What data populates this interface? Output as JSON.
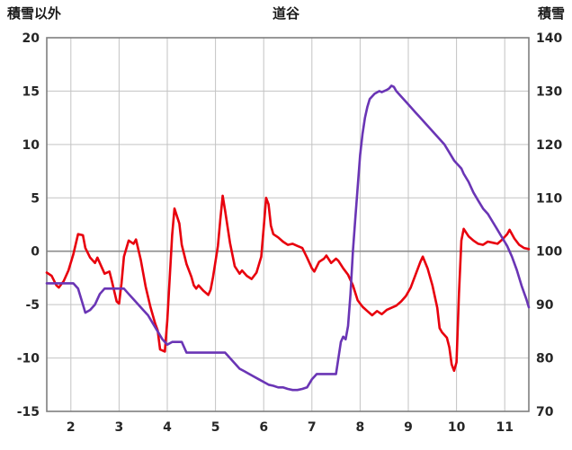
{
  "header": {
    "left_axis_title": "積雪以外",
    "chart_title": "道谷",
    "right_axis_title": "積雪"
  },
  "chart_data": {
    "type": "line",
    "title": "道谷",
    "left_axis": {
      "title": "積雪以外",
      "min": -15,
      "max": 20,
      "ticks": [
        20,
        15,
        10,
        5,
        0,
        -5,
        -10,
        -15
      ]
    },
    "right_axis": {
      "title": "積雪",
      "min": 70,
      "max": 140,
      "ticks": [
        140,
        130,
        120,
        110,
        100,
        90,
        80,
        70
      ]
    },
    "x_axis": {
      "min": 1.5,
      "max": 11.5,
      "ticks": [
        2,
        3,
        4,
        5,
        6,
        7,
        8,
        9,
        10,
        11
      ]
    },
    "grid": true,
    "legend": "none",
    "colors": {
      "grid": "#c3c3c3",
      "zero_line": "#8c8c8c",
      "border": "#7f7f7f",
      "series_other": "#e8000d",
      "series_snow": "#6a35b5"
    },
    "series": [
      {
        "name": "積雪以外",
        "axis": "left",
        "color": "#e8000d",
        "points": [
          [
            1.5,
            -2.0
          ],
          [
            1.6,
            -2.3
          ],
          [
            1.7,
            -3.2
          ],
          [
            1.75,
            -3.4
          ],
          [
            1.85,
            -2.8
          ],
          [
            1.95,
            -1.8
          ],
          [
            2.05,
            -0.3
          ],
          [
            2.15,
            1.6
          ],
          [
            2.25,
            1.5
          ],
          [
            2.3,
            0.3
          ],
          [
            2.4,
            -0.6
          ],
          [
            2.5,
            -1.1
          ],
          [
            2.55,
            -0.6
          ],
          [
            2.65,
            -1.6
          ],
          [
            2.7,
            -2.1
          ],
          [
            2.8,
            -1.9
          ],
          [
            2.85,
            -2.8
          ],
          [
            2.95,
            -4.7
          ],
          [
            3.0,
            -4.9
          ],
          [
            3.05,
            -3.0
          ],
          [
            3.1,
            -0.5
          ],
          [
            3.2,
            1.0
          ],
          [
            3.3,
            0.7
          ],
          [
            3.35,
            1.1
          ],
          [
            3.45,
            -0.8
          ],
          [
            3.55,
            -3.3
          ],
          [
            3.65,
            -5.2
          ],
          [
            3.75,
            -6.8
          ],
          [
            3.8,
            -7.4
          ],
          [
            3.85,
            -9.2
          ],
          [
            3.95,
            -9.4
          ],
          [
            4.0,
            -6.5
          ],
          [
            4.05,
            -2.5
          ],
          [
            4.1,
            1.5
          ],
          [
            4.15,
            4.0
          ],
          [
            4.25,
            2.6
          ],
          [
            4.3,
            0.6
          ],
          [
            4.4,
            -1.2
          ],
          [
            4.5,
            -2.4
          ],
          [
            4.55,
            -3.2
          ],
          [
            4.6,
            -3.5
          ],
          [
            4.65,
            -3.2
          ],
          [
            4.75,
            -3.7
          ],
          [
            4.85,
            -4.1
          ],
          [
            4.9,
            -3.6
          ],
          [
            4.95,
            -2.4
          ],
          [
            5.05,
            0.5
          ],
          [
            5.1,
            3.0
          ],
          [
            5.15,
            5.2
          ],
          [
            5.2,
            3.8
          ],
          [
            5.3,
            0.8
          ],
          [
            5.4,
            -1.4
          ],
          [
            5.5,
            -2.1
          ],
          [
            5.55,
            -1.8
          ],
          [
            5.65,
            -2.3
          ],
          [
            5.75,
            -2.6
          ],
          [
            5.85,
            -2.0
          ],
          [
            5.95,
            -0.5
          ],
          [
            6.0,
            2.2
          ],
          [
            6.05,
            5.0
          ],
          [
            6.1,
            4.4
          ],
          [
            6.15,
            2.4
          ],
          [
            6.2,
            1.6
          ],
          [
            6.3,
            1.3
          ],
          [
            6.4,
            0.9
          ],
          [
            6.5,
            0.6
          ],
          [
            6.6,
            0.7
          ],
          [
            6.7,
            0.5
          ],
          [
            6.8,
            0.3
          ],
          [
            6.9,
            -0.6
          ],
          [
            7.0,
            -1.6
          ],
          [
            7.05,
            -1.9
          ],
          [
            7.15,
            -1.0
          ],
          [
            7.25,
            -0.7
          ],
          [
            7.3,
            -0.4
          ],
          [
            7.4,
            -1.1
          ],
          [
            7.5,
            -0.7
          ],
          [
            7.55,
            -0.9
          ],
          [
            7.65,
            -1.6
          ],
          [
            7.75,
            -2.2
          ],
          [
            7.85,
            -3.2
          ],
          [
            7.95,
            -4.6
          ],
          [
            8.05,
            -5.2
          ],
          [
            8.15,
            -5.6
          ],
          [
            8.25,
            -6.0
          ],
          [
            8.35,
            -5.6
          ],
          [
            8.45,
            -5.9
          ],
          [
            8.55,
            -5.5
          ],
          [
            8.65,
            -5.3
          ],
          [
            8.75,
            -5.1
          ],
          [
            8.85,
            -4.7
          ],
          [
            8.95,
            -4.2
          ],
          [
            9.05,
            -3.4
          ],
          [
            9.15,
            -2.2
          ],
          [
            9.25,
            -1.0
          ],
          [
            9.3,
            -0.5
          ],
          [
            9.4,
            -1.6
          ],
          [
            9.5,
            -3.2
          ],
          [
            9.6,
            -5.3
          ],
          [
            9.65,
            -7.2
          ],
          [
            9.7,
            -7.6
          ],
          [
            9.8,
            -8.1
          ],
          [
            9.85,
            -9.0
          ],
          [
            9.9,
            -10.6
          ],
          [
            9.95,
            -11.2
          ],
          [
            10.0,
            -10.4
          ],
          [
            10.05,
            -4.0
          ],
          [
            10.1,
            1.0
          ],
          [
            10.15,
            2.1
          ],
          [
            10.25,
            1.4
          ],
          [
            10.35,
            1.0
          ],
          [
            10.45,
            0.7
          ],
          [
            10.55,
            0.6
          ],
          [
            10.65,
            0.9
          ],
          [
            10.75,
            0.8
          ],
          [
            10.85,
            0.7
          ],
          [
            10.95,
            1.1
          ],
          [
            11.05,
            1.6
          ],
          [
            11.1,
            2.0
          ],
          [
            11.2,
            1.2
          ],
          [
            11.3,
            0.6
          ],
          [
            11.4,
            0.3
          ],
          [
            11.5,
            0.2
          ]
        ]
      },
      {
        "name": "積雪",
        "axis": "right",
        "color": "#6a35b5",
        "points": [
          [
            1.5,
            94
          ],
          [
            1.7,
            94
          ],
          [
            1.9,
            94
          ],
          [
            2.05,
            94
          ],
          [
            2.15,
            93
          ],
          [
            2.25,
            90
          ],
          [
            2.3,
            88.5
          ],
          [
            2.4,
            89
          ],
          [
            2.5,
            90
          ],
          [
            2.6,
            92
          ],
          [
            2.7,
            93
          ],
          [
            2.8,
            93
          ],
          [
            2.9,
            93
          ],
          [
            3.0,
            93
          ],
          [
            3.1,
            93
          ],
          [
            3.2,
            92
          ],
          [
            3.3,
            91
          ],
          [
            3.4,
            90
          ],
          [
            3.5,
            89
          ],
          [
            3.6,
            88
          ],
          [
            3.7,
            86.5
          ],
          [
            3.8,
            85
          ],
          [
            3.9,
            83.5
          ],
          [
            4.0,
            82.5
          ],
          [
            4.1,
            83
          ],
          [
            4.2,
            83
          ],
          [
            4.3,
            83
          ],
          [
            4.4,
            81
          ],
          [
            4.6,
            81
          ],
          [
            4.8,
            81
          ],
          [
            5.0,
            81
          ],
          [
            5.2,
            81
          ],
          [
            5.3,
            80
          ],
          [
            5.4,
            79
          ],
          [
            5.5,
            78
          ],
          [
            5.6,
            77.5
          ],
          [
            5.7,
            77
          ],
          [
            5.8,
            76.5
          ],
          [
            5.9,
            76
          ],
          [
            6.0,
            75.5
          ],
          [
            6.1,
            75
          ],
          [
            6.2,
            74.8
          ],
          [
            6.3,
            74.5
          ],
          [
            6.4,
            74.5
          ],
          [
            6.5,
            74.2
          ],
          [
            6.6,
            74
          ],
          [
            6.7,
            74
          ],
          [
            6.8,
            74.2
          ],
          [
            6.9,
            74.5
          ],
          [
            7.0,
            76
          ],
          [
            7.05,
            76.5
          ],
          [
            7.1,
            77
          ],
          [
            7.2,
            77
          ],
          [
            7.3,
            77
          ],
          [
            7.4,
            77
          ],
          [
            7.5,
            77
          ],
          [
            7.55,
            80
          ],
          [
            7.6,
            83
          ],
          [
            7.65,
            84
          ],
          [
            7.7,
            83.5
          ],
          [
            7.75,
            86
          ],
          [
            7.8,
            92
          ],
          [
            7.85,
            100
          ],
          [
            7.9,
            106
          ],
          [
            7.95,
            112
          ],
          [
            8.0,
            118
          ],
          [
            8.05,
            122
          ],
          [
            8.1,
            125
          ],
          [
            8.15,
            127
          ],
          [
            8.2,
            128.5
          ],
          [
            8.3,
            129.5
          ],
          [
            8.4,
            130
          ],
          [
            8.45,
            129.8
          ],
          [
            8.55,
            130.2
          ],
          [
            8.6,
            130.5
          ],
          [
            8.65,
            131
          ],
          [
            8.7,
            130.8
          ],
          [
            8.75,
            130
          ],
          [
            8.85,
            129
          ],
          [
            8.95,
            128
          ],
          [
            9.05,
            127
          ],
          [
            9.15,
            126
          ],
          [
            9.25,
            125
          ],
          [
            9.35,
            124
          ],
          [
            9.45,
            123
          ],
          [
            9.55,
            122
          ],
          [
            9.65,
            121
          ],
          [
            9.75,
            120
          ],
          [
            9.85,
            118.5
          ],
          [
            9.95,
            117
          ],
          [
            10.0,
            116.5
          ],
          [
            10.05,
            116
          ],
          [
            10.1,
            115.5
          ],
          [
            10.15,
            114.5
          ],
          [
            10.25,
            113
          ],
          [
            10.35,
            111
          ],
          [
            10.45,
            109.5
          ],
          [
            10.55,
            108
          ],
          [
            10.65,
            107
          ],
          [
            10.75,
            105.5
          ],
          [
            10.85,
            104
          ],
          [
            10.95,
            102.5
          ],
          [
            11.05,
            101
          ],
          [
            11.15,
            99
          ],
          [
            11.25,
            96.5
          ],
          [
            11.35,
            93.5
          ],
          [
            11.45,
            91
          ],
          [
            11.5,
            89.5
          ]
        ]
      }
    ]
  }
}
